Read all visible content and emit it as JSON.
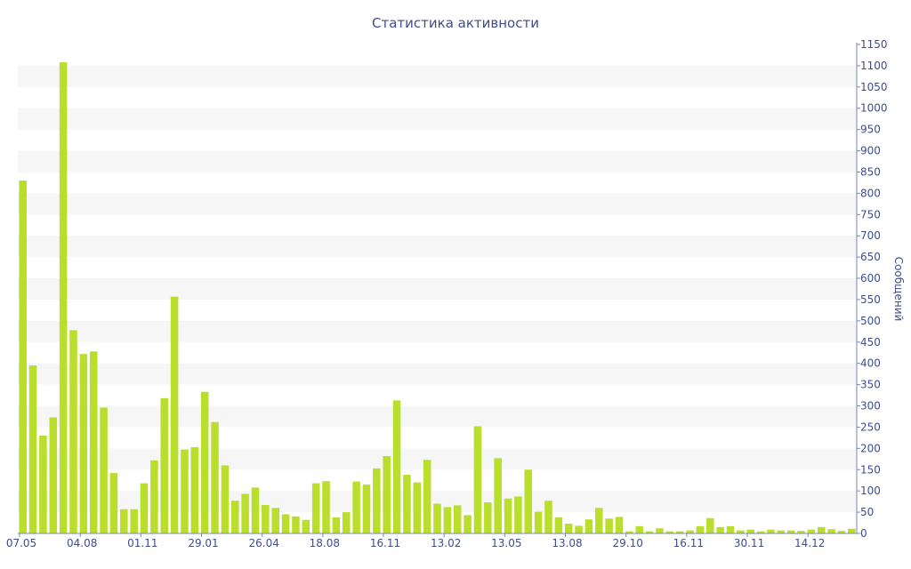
{
  "chart_data": {
    "type": "bar",
    "title": "Статистика активности",
    "ylabel": "Сообщений",
    "xlabel": "",
    "ylim": [
      0,
      1150
    ],
    "y_ticks": [
      0,
      50,
      100,
      150,
      200,
      250,
      300,
      350,
      400,
      450,
      500,
      550,
      600,
      650,
      700,
      750,
      800,
      850,
      900,
      950,
      1000,
      1050,
      1100,
      1150
    ],
    "y_axis_side": "right",
    "x_tick_labels": [
      {
        "index": 0,
        "label": "07.05"
      },
      {
        "index": 6,
        "label": "04.08"
      },
      {
        "index": 12,
        "label": "01.11"
      },
      {
        "index": 18,
        "label": "29.01"
      },
      {
        "index": 24,
        "label": "26.04"
      },
      {
        "index": 30,
        "label": "18.08"
      },
      {
        "index": 36,
        "label": "16.11"
      },
      {
        "index": 42,
        "label": "13.02"
      },
      {
        "index": 48,
        "label": "13.05"
      },
      {
        "index": 54,
        "label": "13.08"
      },
      {
        "index": 60,
        "label": "29.10"
      },
      {
        "index": 66,
        "label": "16.11"
      },
      {
        "index": 72,
        "label": "30.11"
      },
      {
        "index": 78,
        "label": "14.12"
      }
    ],
    "values": [
      830,
      395,
      230,
      273,
      1108,
      478,
      422,
      428,
      296,
      142,
      57,
      57,
      118,
      172,
      318,
      557,
      197,
      203,
      333,
      262,
      160,
      77,
      93,
      108,
      67,
      60,
      45,
      40,
      32,
      118,
      123,
      38,
      50,
      122,
      115,
      153,
      182,
      313,
      138,
      120,
      173,
      70,
      62,
      66,
      43,
      252,
      73,
      177,
      82,
      87,
      150,
      51,
      77,
      38,
      23,
      18,
      33,
      60,
      35,
      39,
      5,
      17,
      5,
      12,
      5,
      5,
      7,
      17,
      36,
      15,
      17,
      7,
      9,
      5,
      9,
      7,
      7,
      6,
      9,
      15,
      10,
      6,
      11
    ],
    "grid": true,
    "colors": {
      "bar": "#b9de2c",
      "text": "#3d4d8a",
      "axis": "#7a86b4",
      "band": "#f6f6f6"
    }
  }
}
